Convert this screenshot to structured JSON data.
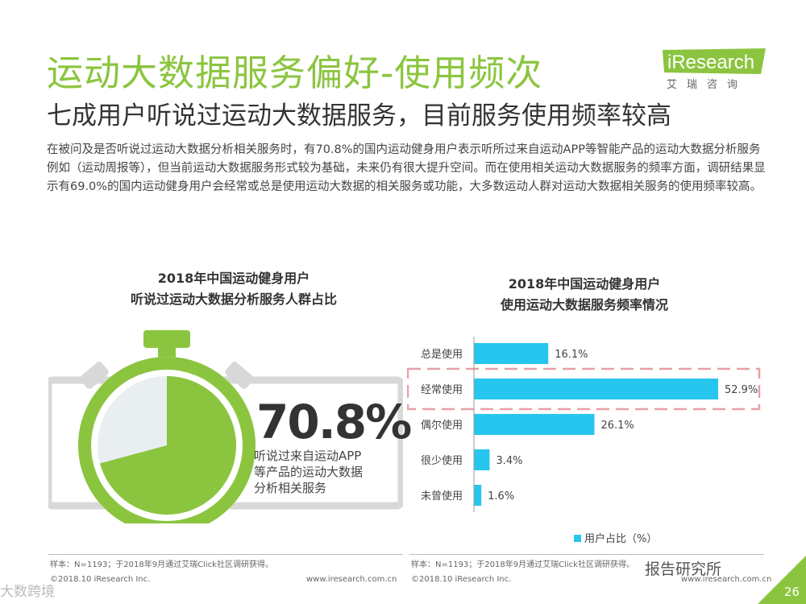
{
  "header": {
    "title": "运动大数据服务偏好-使用频次",
    "subtitle": "七成用户听说过运动大数据服务，目前服务使用频率较高",
    "body": "在被问及是否听说过运动大数据分析相关服务时，有70.8%的国内运动健身用户表示听所过来自运动APP等智能产品的运动大数据分析服务例如（运动周报等），但当前运动大数据服务形式较为基础，未来仍有很大提升空间。而在使用相关运动大数据服务的频率方面，调研结果显示有69.0%的国内运动健身用户会经常或总是使用运动大数据的相关服务或功能，大多数运动人群对运动大数据相关服务的使用频率较高。"
  },
  "logo": {
    "name": "iResearch",
    "sub": "艾瑞咨询"
  },
  "left_chart": {
    "title_line1": "2018年中国运动健身用户",
    "title_line2": "听说过运动大数据分析服务人群占比",
    "value_text": "70.8%",
    "value": 70.8,
    "desc_line1": "听说过来自运动APP",
    "desc_line2": "等产品的运动大数据",
    "desc_line3": "分析相关服务"
  },
  "chart_data": {
    "type": "bar",
    "title": "2018年中国运动健身用户使用运动大数据服务频率情况",
    "categories": [
      "总是使用",
      "经常使用",
      "偶尔使用",
      "很少使用",
      "未曾使用"
    ],
    "series": [
      {
        "name": "用户占比（%）",
        "values": [
          16.1,
          52.9,
          26.1,
          3.4,
          1.6
        ]
      }
    ],
    "value_labels": [
      "16.1%",
      "52.9%",
      "26.1%",
      "3.4%",
      "1.6%"
    ],
    "orientation": "horizontal",
    "highlight": "经常使用",
    "xlim": [
      0,
      52.9
    ],
    "legend_position": "bottom",
    "grid": false
  },
  "right_chart": {
    "title_line1": "2018年中国运动健身用户",
    "title_line2": "使用运动大数据服务频率情况"
  },
  "colors": {
    "green": "#8bc53f",
    "bar": "#27c6ef",
    "highlight_border": "#e8a0a8"
  },
  "footer": {
    "source_left": "样本：N=1193；于2018年9月通过艾瑞Click社区调研获得。",
    "source_right": "样本：N=1193；于2018年9月通过艾瑞Click社区调研获得。",
    "copyright_left": "©2018.10 iResearch Inc.",
    "url_left": "www.iresearch.com.cn",
    "copyright_right": "©2018.10 iResearch Inc.",
    "url_right": "www.iresearch.com.cn",
    "page": "26"
  },
  "watermarks": {
    "left": "大数跨境",
    "right": "报告研究所"
  }
}
